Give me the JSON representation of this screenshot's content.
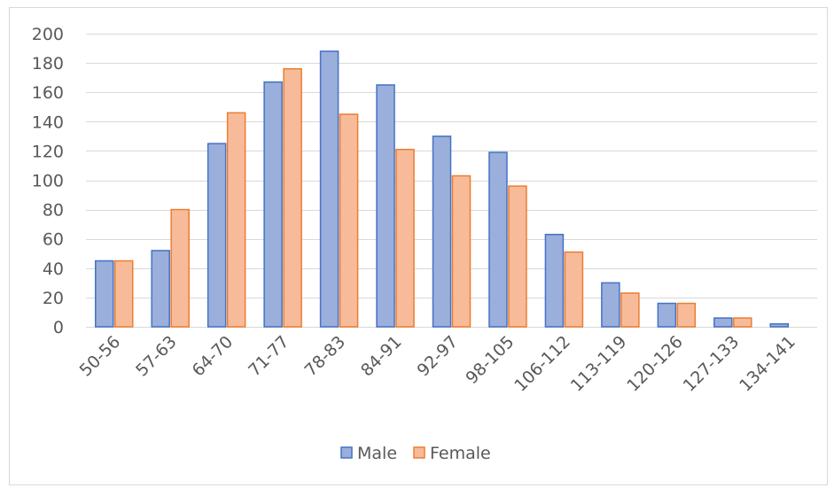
{
  "chart_data": {
    "type": "bar",
    "title": "",
    "xlabel": "",
    "ylabel": "",
    "categories": [
      "50-56",
      "57-63",
      "64-70",
      "71-77",
      "78-83",
      "84-91",
      "92-97",
      "98-105",
      "106-112",
      "113-119",
      "120-126",
      "127-133",
      "134-141"
    ],
    "series": [
      {
        "name": "Male",
        "values": [
          45,
          52,
          125,
          167,
          188,
          165,
          130,
          119,
          63,
          30,
          16,
          6,
          2
        ],
        "fill": "#9aafdc",
        "stroke": "#4472c4"
      },
      {
        "name": "Female",
        "values": [
          45,
          80,
          146,
          176,
          145,
          121,
          103,
          96,
          51,
          23,
          16,
          6,
          0
        ],
        "fill": "#f7bb99",
        "stroke": "#ed7d31"
      }
    ],
    "ylim": [
      0,
      200
    ],
    "yticks": [
      0,
      20,
      40,
      60,
      80,
      100,
      120,
      140,
      160,
      180,
      200
    ],
    "grid": true,
    "legend": "bottom",
    "colors": {
      "grid": "#d9d9d9",
      "axis": "#d9d9d9",
      "text": "#595959"
    }
  }
}
